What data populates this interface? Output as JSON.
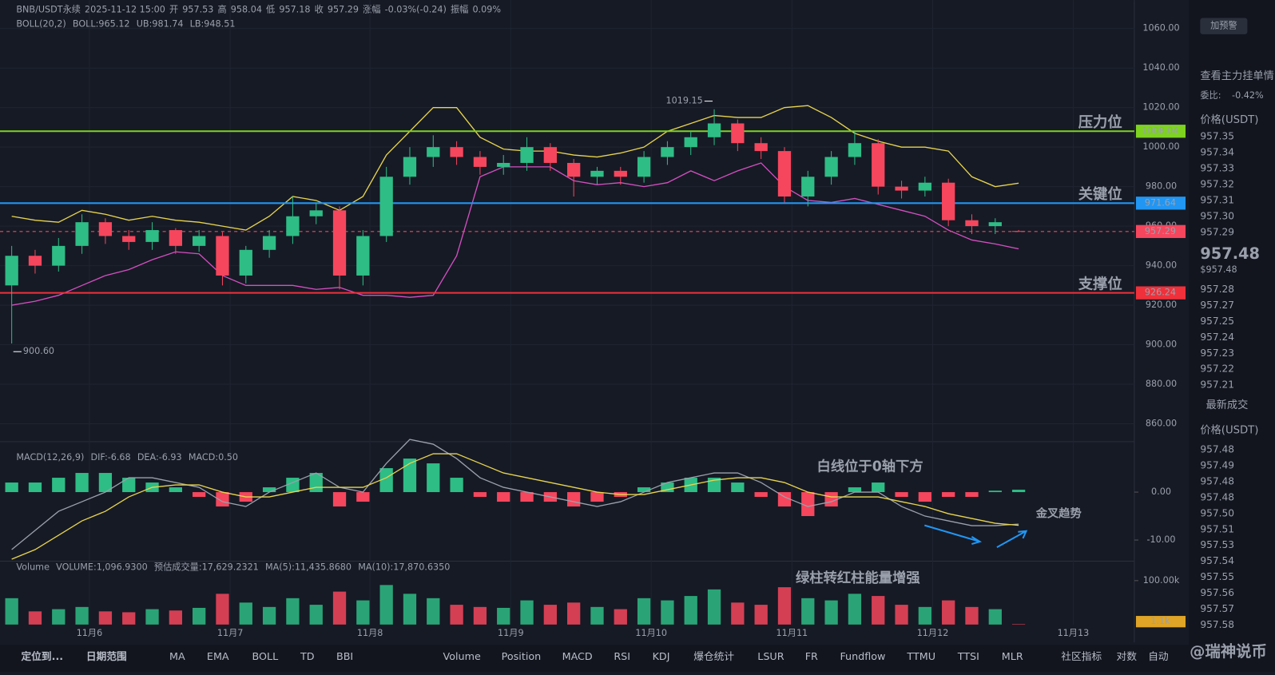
{
  "chart_data": {
    "type": "candlestick",
    "header": {
      "symbol": "BNB/USDT永续",
      "time": "2025-11-12 15:00",
      "fields": [
        {
          "label": "开",
          "value": "957.53"
        },
        {
          "label": "高",
          "value": "958.04"
        },
        {
          "label": "低",
          "value": "957.18"
        },
        {
          "label": "收",
          "value": "957.29"
        },
        {
          "label": "涨幅",
          "value": "-0.03%(-0.24)"
        },
        {
          "label": "振幅",
          "value": "0.09%"
        }
      ]
    },
    "boll_legend": [
      "BOLL(20,2)",
      "BOLL:965.12",
      "UB:981.74",
      "LB:948.51"
    ],
    "xlim": [
      0,
      48.44
    ],
    "xticks": [
      {
        "value": 3.82,
        "label": "11月6"
      },
      {
        "value": 9.83,
        "label": "11月7"
      },
      {
        "value": 15.8,
        "label": "11月8"
      },
      {
        "value": 21.81,
        "label": "11月9"
      },
      {
        "value": 27.81,
        "label": "11月10"
      },
      {
        "value": 33.82,
        "label": "11月11"
      },
      {
        "value": 39.83,
        "label": "11月12"
      },
      {
        "value": 45.83,
        "label": "11月13"
      }
    ],
    "ylim": [
      852.2,
      1074.4
    ],
    "yticks": [
      {
        "value": 860,
        "label": "860.00"
      },
      {
        "value": 880,
        "label": "880.00"
      },
      {
        "value": 900,
        "label": "900.00"
      },
      {
        "value": 920,
        "label": "920.00"
      },
      {
        "value": 940,
        "label": "940.00"
      },
      {
        "value": 960,
        "label": "960.00"
      },
      {
        "value": 980,
        "label": "980.00"
      },
      {
        "value": 1000,
        "label": "1000.00"
      },
      {
        "value": 1020,
        "label": "1020.00"
      },
      {
        "value": 1040,
        "label": "1040.00"
      },
      {
        "value": 1060,
        "label": "1060.00"
      }
    ],
    "up_color": "#2ebd85",
    "down_color": "#f6465d",
    "candles": {
      "open": [
        930,
        945,
        940,
        950,
        962,
        955,
        952,
        958,
        950,
        955,
        935,
        948,
        955,
        965,
        968,
        935,
        955,
        985,
        995,
        1000,
        995,
        990,
        992,
        1000,
        992,
        985,
        988,
        985,
        995,
        1000,
        1005,
        1012,
        1002,
        998,
        975,
        985,
        995,
        1002,
        980,
        978,
        982,
        963,
        960,
        957.53
      ],
      "close": [
        945,
        940,
        950,
        962,
        955,
        952,
        958,
        950,
        955,
        935,
        948,
        955,
        965,
        968,
        935,
        955,
        985,
        995,
        1000,
        995,
        990,
        992,
        1000,
        992,
        985,
        988,
        985,
        995,
        1000,
        1005,
        1012,
        1002,
        998,
        975,
        985,
        995,
        1002,
        980,
        978,
        982,
        963,
        960,
        962,
        957.29
      ],
      "high": [
        950,
        948,
        954,
        966,
        964,
        958,
        962,
        959,
        958,
        957,
        950,
        958,
        975,
        972,
        970,
        958,
        990,
        1000,
        1006,
        1003,
        998,
        996,
        1005,
        1002,
        994,
        990,
        990,
        998,
        1003,
        1008,
        1019.15,
        1014,
        1005,
        1000,
        988,
        998,
        1008,
        1004,
        983,
        985,
        984,
        966,
        964,
        958.04
      ],
      "low": [
        900.6,
        936,
        937,
        946,
        951,
        948,
        948,
        946,
        947,
        930,
        931,
        944,
        951,
        961,
        928,
        930,
        952,
        981,
        990,
        991,
        986,
        986,
        988,
        988,
        975,
        981,
        981,
        982,
        991,
        996,
        1001,
        998,
        994,
        972,
        970,
        981,
        991,
        976,
        974,
        975,
        960,
        956,
        956,
        957.18
      ]
    },
    "boll": {
      "upper_color": "#e8d44d",
      "lower_color": "#d44fc1",
      "upper": [
        965,
        963,
        962,
        968,
        966,
        963,
        965,
        963,
        962,
        960,
        958,
        965,
        975,
        973,
        968,
        975,
        996,
        1008,
        1020,
        1020,
        1005,
        999,
        998,
        998,
        996,
        995,
        997,
        1000,
        1008,
        1012,
        1016,
        1015,
        1015,
        1020,
        1021,
        1015,
        1007,
        1003,
        1000,
        1000,
        998,
        985,
        980,
        981.74
      ],
      "lower": [
        920,
        922,
        925,
        930,
        935,
        938,
        943,
        947,
        946,
        935,
        930,
        930,
        930,
        928,
        929,
        925,
        925,
        924,
        925,
        945,
        985,
        990,
        990,
        990,
        983,
        981,
        982,
        980,
        982,
        988,
        983,
        988,
        992,
        980,
        973,
        972,
        974,
        971,
        968,
        965,
        958,
        953,
        951,
        948.51
      ]
    },
    "high_mark": "1019.15",
    "low_mark": "900.60",
    "levels": [
      {
        "value": 1008.04,
        "name": "压力位",
        "color": "#7ed321"
      },
      {
        "value": 971.64,
        "name": "关键位",
        "color": "#2196f3"
      },
      {
        "value": 926.24,
        "name": "支撑位",
        "color": "#f0303a"
      }
    ],
    "current": {
      "value": 957.29,
      "color": "#f6465d"
    },
    "macd": {
      "legend": [
        "MACD(12,26,9)",
        "DIF:-6.68",
        "DEA:-6.93",
        "MACD:0.50"
      ],
      "ylim": [
        -14.4,
        10.2
      ],
      "yticks": [
        {
          "value": 0,
          "label": "0.00"
        },
        {
          "value": -10,
          "label": "-10.00"
        }
      ],
      "hist": [
        2,
        2,
        3,
        4,
        4,
        3,
        2,
        1,
        -1,
        -3,
        -2,
        1,
        3,
        4,
        -3,
        -2,
        5,
        7,
        6,
        3,
        -1,
        -2,
        -2,
        -2,
        -3,
        -2,
        -1,
        1,
        2,
        3,
        3,
        2,
        -1,
        -3,
        -5,
        -3,
        1,
        2,
        -1,
        -2,
        -1,
        -1,
        0.3,
        0.5
      ],
      "dif": [
        -12,
        -8,
        -4,
        -2,
        0,
        3,
        3,
        2,
        1,
        -2,
        -3,
        0,
        2,
        4,
        1,
        0,
        6,
        11,
        10,
        7,
        3,
        1,
        0,
        -1,
        -2,
        -3,
        -2,
        0,
        2,
        3,
        4,
        4,
        2,
        -1,
        -3,
        -2,
        0,
        0,
        -3,
        -5,
        -6,
        -7,
        -7,
        -6.68
      ],
      "dea": [
        -14,
        -12,
        -9,
        -6,
        -4,
        -1,
        1,
        1.5,
        1.5,
        0,
        -1,
        -1,
        0,
        1,
        1,
        1,
        3,
        6,
        8,
        8,
        6,
        4,
        3,
        2,
        1,
        0,
        -0.5,
        -0.5,
        0.5,
        1.5,
        2.5,
        3,
        3,
        2,
        0,
        -1,
        -1,
        -1,
        -2,
        -3,
        -4.5,
        -5.5,
        -6.5,
        -6.93
      ],
      "dif_color": "#9aa0ac",
      "dea_color": "#e8d44d"
    },
    "volume": {
      "legend": [
        "Volume",
        "VOLUME:1,096.9300",
        "预估成交量:17,629.2321",
        "MA(5):11,435.8680",
        "MA(10):17,870.6350"
      ],
      "ylim": [
        0,
        144400
      ],
      "yticks": [
        {
          "value": 100000,
          "label": "100.00k"
        }
      ],
      "values": [
        60000,
        30000,
        35000,
        40000,
        30000,
        28000,
        35000,
        32000,
        38000,
        70000,
        50000,
        40000,
        60000,
        45000,
        75000,
        55000,
        90000,
        70000,
        60000,
        45000,
        40000,
        38000,
        55000,
        45000,
        50000,
        40000,
        35000,
        60000,
        55000,
        65000,
        80000,
        50000,
        45000,
        85000,
        60000,
        55000,
        70000,
        65000,
        45000,
        40000,
        55000,
        40000,
        35000,
        1096.93
      ],
      "tag": {
        "value": 1096.93,
        "label": "1.1k"
      }
    },
    "annotations": [
      "白线位于0轴下方",
      "金叉趋势",
      "绿柱转红柱能量增强"
    ]
  },
  "panel": {
    "alert": "加预警",
    "depth_title": "查看主力挂单情",
    "ratio_label": "委比:",
    "ratio": "-0.42%",
    "price_header": "价格(USDT)",
    "asks": [
      "957.35",
      "957.34",
      "957.33",
      "957.32",
      "957.31",
      "957.30",
      "957.29"
    ],
    "last": "957.48",
    "last_usd": "$957.48",
    "bids": [
      "957.28",
      "957.27",
      "957.25",
      "957.24",
      "957.23",
      "957.22",
      "957.21"
    ],
    "trades_title": "最新成交",
    "trades_header": "价格(USDT)",
    "trades": [
      "957.48",
      "957.49",
      "957.48",
      "957.48",
      "957.50",
      "957.51",
      "957.53",
      "957.54",
      "957.55",
      "957.56",
      "957.57",
      "957.58"
    ]
  },
  "toolbar": {
    "left": [
      "定位到...",
      "日期范围"
    ],
    "indicators": [
      "MA",
      "EMA",
      "BOLL",
      "TD",
      "BBI",
      "Volume",
      "Position",
      "MACD",
      "RSI",
      "KDJ",
      "爆仓统计",
      "LSUR",
      "FR",
      "Fundflow",
      "TTMU",
      "TTSI",
      "MLR"
    ],
    "right": [
      "社区指标",
      "对数",
      "自动"
    ],
    "watermark": "@瑞神说币"
  }
}
